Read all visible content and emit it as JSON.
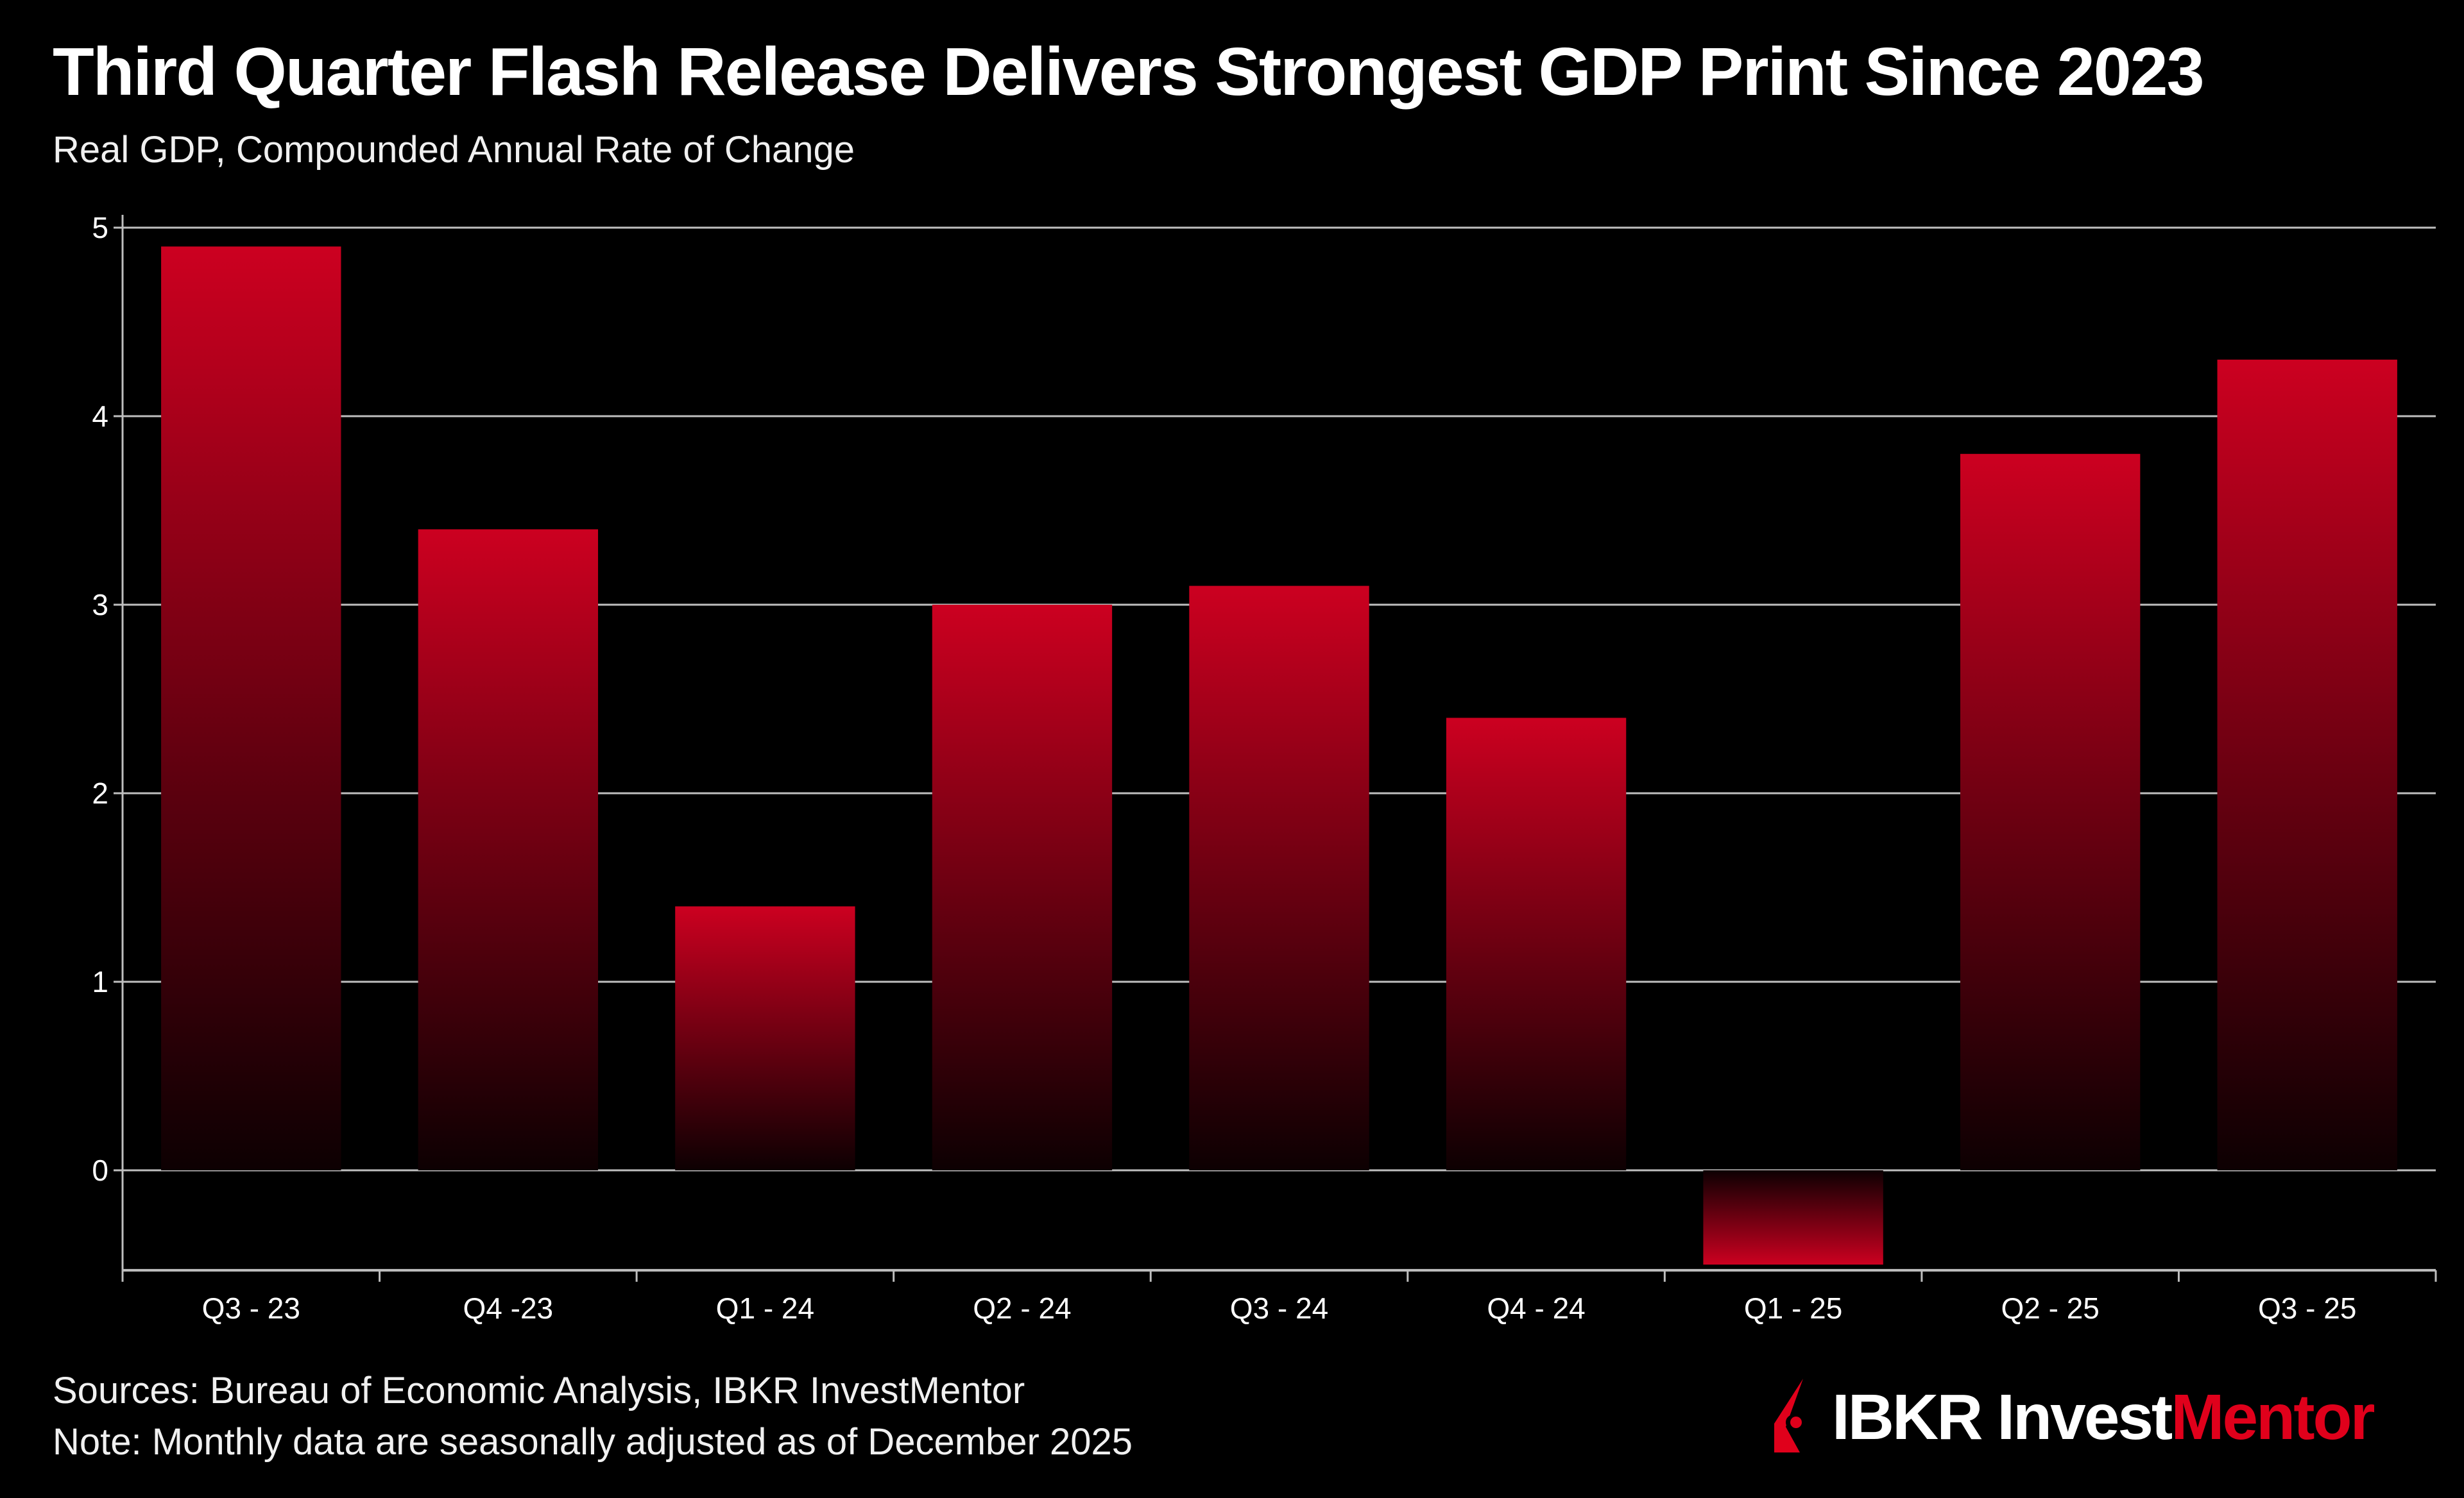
{
  "header": {
    "title": "Third Quarter Flash Release Delivers Strongest GDP Print Since 2023",
    "subtitle": "Real GDP, Compounded Annual Rate of Change"
  },
  "footer": {
    "sources": "Sources: Bureau of Economic Analysis, IBKR InvestMentor",
    "note": "Note: Monthly data are seasonally adjusted as of December 2025"
  },
  "logo": {
    "text_white": "IBKR Invest",
    "text_red": "Mentor"
  },
  "colors": {
    "bar_top": "#cc0020",
    "bar_bottom": "#0d0002",
    "background": "#000000",
    "grid": "#bfbfbf",
    "brand_red": "#e0001b"
  },
  "chart_data": {
    "type": "bar",
    "title": "Third Quarter Flash Release Delivers Strongest GDP Print Since 2023",
    "subtitle": "Real GDP, Compounded Annual Rate of Change",
    "xlabel": "",
    "ylabel": "",
    "categories": [
      "Q3 - 23",
      "Q4 -23",
      "Q1 - 24",
      "Q2 - 24",
      "Q3 - 24",
      "Q4 - 24",
      "Q1 - 25",
      "Q2 - 25",
      "Q3 - 25"
    ],
    "values": [
      4.9,
      3.4,
      1.4,
      3.0,
      3.1,
      2.4,
      -0.5,
      3.8,
      4.3
    ],
    "yticks": [
      "0",
      "1",
      "2",
      "3",
      "4",
      "5"
    ],
    "ylim": [
      -0.53,
      5
    ],
    "grid": true,
    "legend": "none"
  }
}
